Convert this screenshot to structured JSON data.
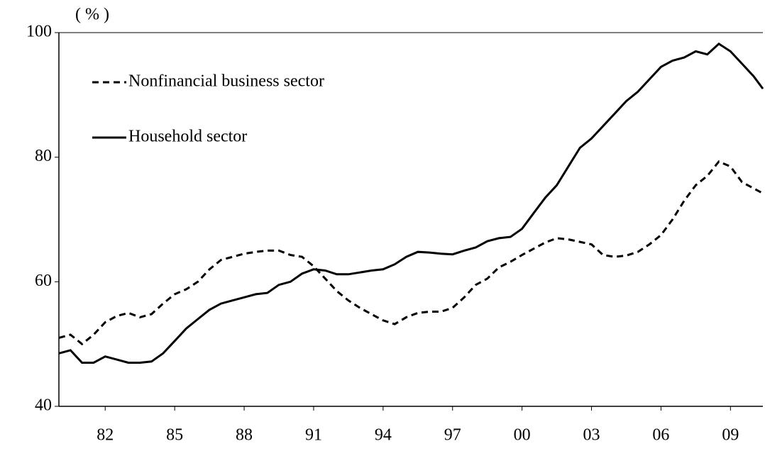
{
  "chart_data": {
    "type": "line",
    "ylabel": "( % )",
    "x": [
      1980,
      1980.5,
      1981,
      1981.5,
      1982,
      1982.5,
      1983,
      1983.5,
      1984,
      1984.5,
      1985,
      1985.5,
      1986,
      1986.5,
      1987,
      1987.5,
      1988,
      1988.5,
      1989,
      1989.5,
      1990,
      1990.5,
      1991,
      1991.5,
      1992,
      1992.5,
      1993,
      1993.5,
      1994,
      1994.5,
      1995,
      1995.5,
      1996,
      1996.5,
      1997,
      1997.5,
      1998,
      1998.5,
      1999,
      1999.5,
      2000,
      2000.5,
      2001,
      2001.5,
      2002,
      2002.5,
      2003,
      2003.5,
      2004,
      2004.5,
      2005,
      2005.5,
      2006,
      2006.5,
      2007,
      2007.5,
      2008,
      2008.5,
      2009,
      2009.5,
      2010,
      2010.4
    ],
    "series": [
      {
        "name": "Nonfinancial business sector",
        "color": "#000000",
        "dash": true,
        "values": [
          51,
          51.5,
          50,
          51.5,
          53.5,
          54.5,
          55,
          54.3,
          54.8,
          56.5,
          58,
          58.8,
          60,
          62,
          63.5,
          64,
          64.5,
          64.8,
          65,
          65,
          64.3,
          64,
          62.5,
          60.5,
          58.5,
          57,
          55.8,
          54.8,
          53.8,
          53.2,
          54.3,
          55,
          55.2,
          55.2,
          55.8,
          57.5,
          59.5,
          60.5,
          62.3,
          63.2,
          64.3,
          65.3,
          66.3,
          67,
          66.8,
          66.4,
          66,
          64.3,
          64,
          64.2,
          64.8,
          66,
          67.5,
          70,
          73,
          75.5,
          77,
          79.3,
          78.5,
          76,
          75,
          74.2
        ]
      },
      {
        "name": "Household sector",
        "color": "#000000",
        "dash": false,
        "values": [
          48.5,
          49,
          47,
          47,
          48,
          47.5,
          47,
          47,
          47.2,
          48.5,
          50.5,
          52.5,
          54,
          55.5,
          56.5,
          57,
          57.5,
          58,
          58.2,
          59.5,
          60,
          61.3,
          62,
          61.8,
          61.2,
          61.2,
          61.5,
          61.8,
          62,
          62.8,
          64,
          64.8,
          64.7,
          64.5,
          64.4,
          65,
          65.5,
          66.5,
          67,
          67.2,
          68.5,
          71,
          73.5,
          75.5,
          78.5,
          81.5,
          83,
          85,
          87,
          89,
          90.5,
          92.5,
          94.5,
          95.5,
          96,
          97,
          96.5,
          98.2,
          97,
          95,
          93,
          91
        ]
      }
    ],
    "xlim": [
      1980,
      2010.4
    ],
    "xticks": [
      {
        "value": 1982,
        "label": "82"
      },
      {
        "value": 1985,
        "label": "85"
      },
      {
        "value": 1988,
        "label": "88"
      },
      {
        "value": 1991,
        "label": "91"
      },
      {
        "value": 1994,
        "label": "94"
      },
      {
        "value": 1997,
        "label": "97"
      },
      {
        "value": 2000,
        "label": "00"
      },
      {
        "value": 2003,
        "label": "03"
      },
      {
        "value": 2006,
        "label": "06"
      },
      {
        "value": 2009,
        "label": "09"
      }
    ],
    "ylim": [
      40,
      100
    ],
    "yticks": [
      40,
      60,
      80,
      100
    ],
    "grid": false,
    "legend": "upper left"
  }
}
